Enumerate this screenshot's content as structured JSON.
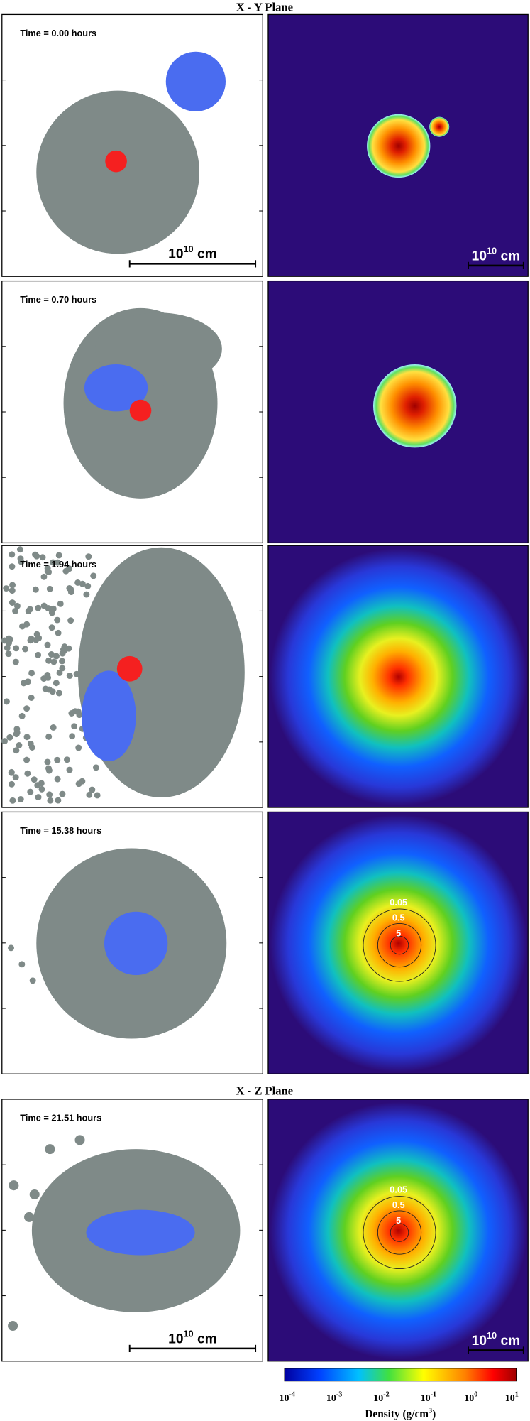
{
  "titles": {
    "xy": "X - Y Plane",
    "xz": "X - Z Plane"
  },
  "panels": [
    {
      "time": "Time =  0.00 hours",
      "scale_bar": {
        "base": "10",
        "exponent": "10",
        "unit": "cm"
      }
    },
    {
      "time": "Time = 0.70 hours"
    },
    {
      "time": "Time = 1.94 hours"
    },
    {
      "time": "Time = 15.38 hours",
      "contours": [
        "0.05",
        "0.5",
        "5"
      ]
    },
    {
      "time": "Time = 21.51 hours",
      "contours": [
        "0.05",
        "0.5",
        "5"
      ],
      "scale_bar": {
        "base": "10",
        "exponent": "10",
        "unit": "cm"
      }
    }
  ],
  "colorbar": {
    "ticks": [
      {
        "base": "10",
        "exponent": "-4"
      },
      {
        "base": "10",
        "exponent": "-3"
      },
      {
        "base": "10",
        "exponent": "-2"
      },
      {
        "base": "10",
        "exponent": "-1"
      },
      {
        "base": "10",
        "exponent": "0"
      },
      {
        "base": "10",
        "exponent": "1"
      }
    ],
    "label": "Density (g/cm",
    "label_exponent": "3",
    "label_end": ")"
  }
}
